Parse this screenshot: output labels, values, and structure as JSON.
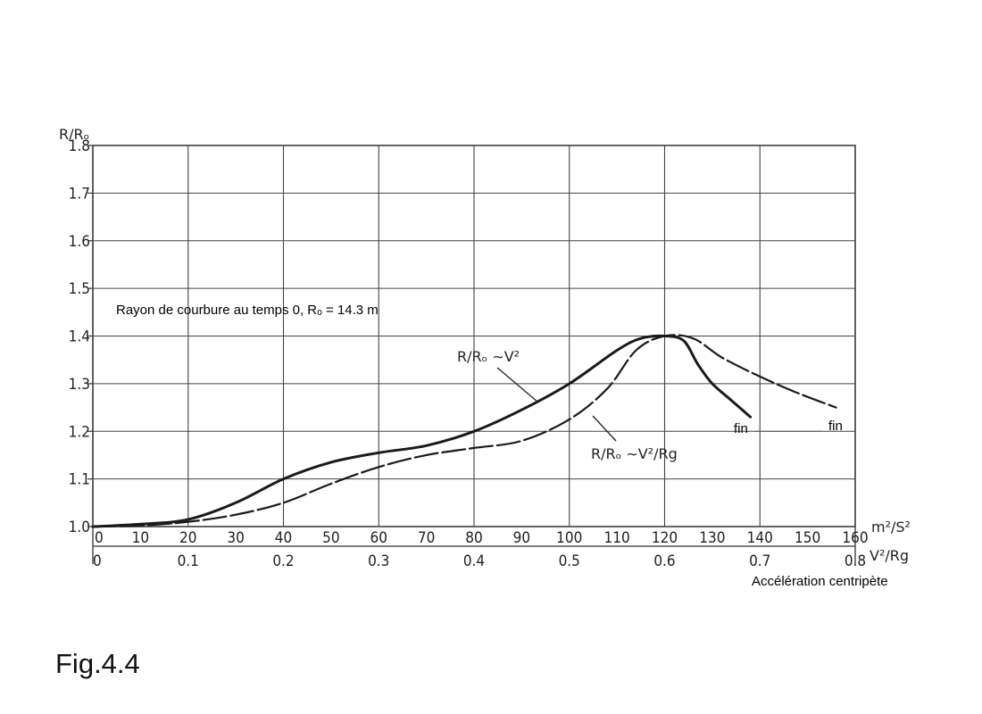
{
  "figure": {
    "caption": "Fig.4.4"
  },
  "chart_data": {
    "type": "line",
    "title": "",
    "ylabel": "R/Rₒ",
    "ylim": [
      1.0,
      1.8
    ],
    "yticks": [
      "1.0",
      "1.1",
      "1.2",
      "1.3",
      "1.4",
      "1.5",
      "1.6",
      "1.7",
      "1.8"
    ],
    "x_axis_top": {
      "unit": "m²/S²",
      "range": [
        0,
        160
      ],
      "ticks": [
        "0",
        "10",
        "20",
        "30",
        "40",
        "50",
        "60",
        "70",
        "80",
        "90",
        "100",
        "110",
        "120",
        "130",
        "140",
        "150",
        "160"
      ]
    },
    "x_axis_bottom": {
      "unit": "V²/Rg",
      "range": [
        0,
        0.8
      ],
      "ticks": [
        "0",
        "0.1",
        "0.2",
        "0.3",
        "0.4",
        "0.5",
        "0.6",
        "0.7",
        "0.8"
      ]
    },
    "xlabel": "Accélération centripète",
    "grid": true,
    "annotation": "Rayon de courbure au temps 0, Rₒ = 14.3 m",
    "series": [
      {
        "name": "R/Rₒ ∼V²",
        "axis": "top",
        "style": "solid",
        "x": [
          0,
          10,
          20,
          30,
          40,
          50,
          60,
          70,
          80,
          90,
          100,
          110,
          115,
          120,
          124,
          127,
          130,
          134,
          138
        ],
        "y": [
          1.0,
          1.005,
          1.015,
          1.05,
          1.1,
          1.135,
          1.155,
          1.17,
          1.2,
          1.245,
          1.3,
          1.37,
          1.395,
          1.4,
          1.39,
          1.34,
          1.3,
          1.265,
          1.23
        ]
      },
      {
        "name": "R/Rₒ ∼V²/Rg",
        "axis": "bottom",
        "style": "dashed",
        "x": [
          0,
          0.05,
          0.1,
          0.15,
          0.2,
          0.25,
          0.3,
          0.35,
          0.4,
          0.45,
          0.5,
          0.54,
          0.57,
          0.6,
          0.63,
          0.66,
          0.7,
          0.74,
          0.78
        ],
        "y": [
          1.0,
          1.002,
          1.01,
          1.025,
          1.05,
          1.09,
          1.125,
          1.15,
          1.165,
          1.18,
          1.225,
          1.29,
          1.37,
          1.4,
          1.395,
          1.355,
          1.315,
          1.28,
          1.25
        ]
      }
    ],
    "end_labels": [
      "fin",
      "fin"
    ]
  }
}
